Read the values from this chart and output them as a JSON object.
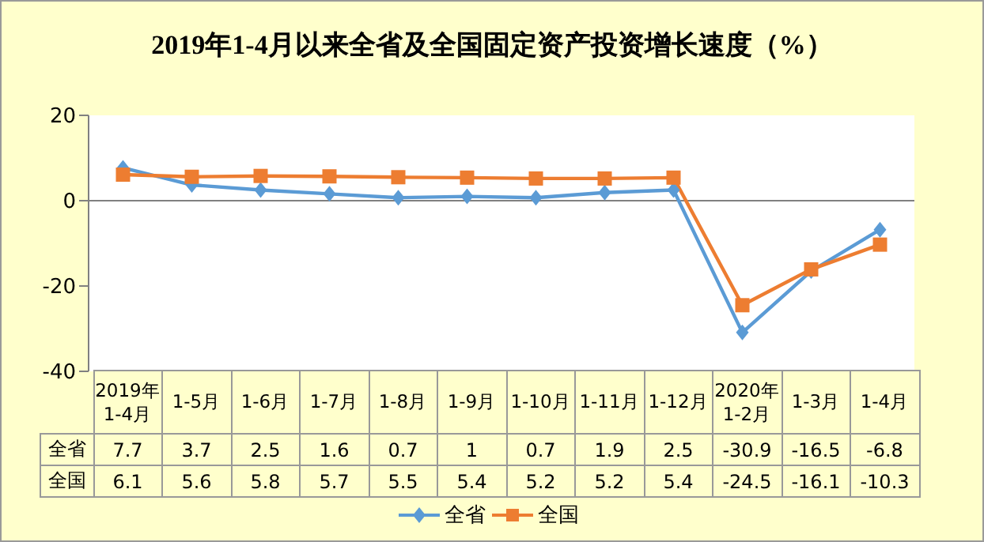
{
  "chart_data": {
    "type": "line",
    "title": "2019年1-4月以来全省及全国固定资产投资增长速度（%）",
    "categories": [
      "2019年\n1-4月",
      "1-5月",
      "1-6月",
      "1-7月",
      "1-8月",
      "1-9月",
      "1-10月",
      "1-11月",
      "1-12月",
      "2020年\n1-2月",
      "1-3月",
      "1-4月"
    ],
    "series": [
      {
        "name": "全省",
        "color": "#5b9bd5",
        "marker": "diamond",
        "values": [
          7.7,
          3.7,
          2.5,
          1.6,
          0.7,
          1,
          0.7,
          1.9,
          2.5,
          -30.9,
          -16.5,
          -6.8
        ]
      },
      {
        "name": "全国",
        "color": "#ed7d31",
        "marker": "square",
        "values": [
          6.1,
          5.6,
          5.8,
          5.7,
          5.5,
          5.4,
          5.2,
          5.2,
          5.4,
          -24.5,
          -16.1,
          -10.3
        ]
      }
    ],
    "ylim": [
      -40,
      20
    ],
    "yticks": [
      -40,
      -20,
      0,
      20
    ],
    "grid": false,
    "legend": "bottom",
    "data_labels": true,
    "line_style": "solid",
    "ref_lines": [
      {
        "axis": "y",
        "value": 0,
        "color": "#808080"
      }
    ]
  }
}
